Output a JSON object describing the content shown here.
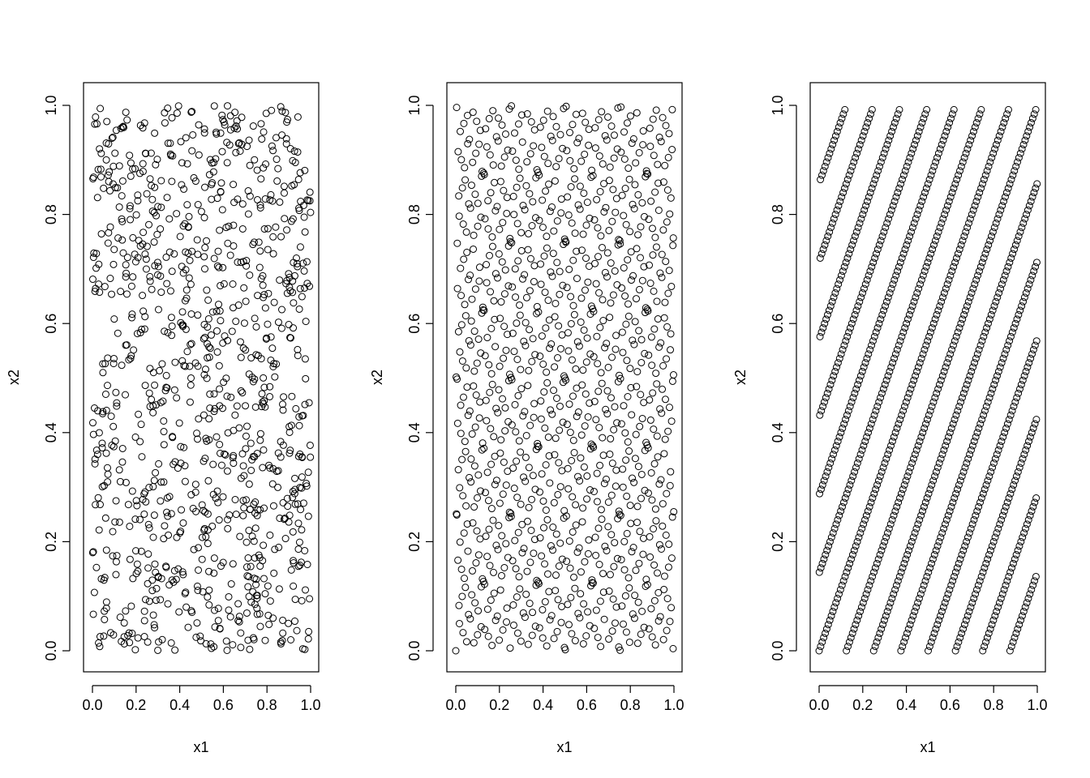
{
  "chart_data": [
    {
      "type": "scatter",
      "xlabel": "x1",
      "ylabel": "x2",
      "xlim": [
        0,
        1
      ],
      "ylim": [
        0,
        1
      ],
      "xticks": [
        "0.0",
        "0.2",
        "0.4",
        "0.6",
        "0.8",
        "1.0"
      ],
      "yticks": [
        "0.0",
        "0.2",
        "0.4",
        "0.6",
        "0.8",
        "1.0"
      ],
      "grid": false,
      "marker": "open-circle",
      "n_points": 1000,
      "pattern": "random uniform sample on unit square",
      "sample_points": [
        [
          0.1,
          0.99
        ],
        [
          0.3,
          0.99
        ],
        [
          0.55,
          1.0
        ],
        [
          0.91,
          1.0
        ],
        [
          0.02,
          0.96
        ],
        [
          0.38,
          0.36
        ],
        [
          0.52,
          0.51
        ],
        [
          0.97,
          0.31
        ],
        [
          0.99,
          0.01
        ],
        [
          0.31,
          0.0
        ],
        [
          0.07,
          0.08
        ],
        [
          0.95,
          0.71
        ],
        [
          0.01,
          0.59
        ],
        [
          0.64,
          0.02
        ],
        [
          0.42,
          0.8
        ]
      ]
    },
    {
      "type": "scatter",
      "xlabel": "x1",
      "ylabel": "x2",
      "xlim": [
        0,
        1
      ],
      "ylim": [
        0,
        1
      ],
      "xticks": [
        "0.0",
        "0.2",
        "0.4",
        "0.6",
        "0.8",
        "1.0"
      ],
      "yticks": [
        "0.0",
        "0.2",
        "0.4",
        "0.6",
        "0.8",
        "1.0"
      ],
      "grid": false,
      "marker": "open-circle",
      "n_points": 1000,
      "pattern": "low-discrepancy (Sobol-like) quasi-random sequence",
      "sample_points": [
        [
          0.0,
          0.0
        ],
        [
          0.5,
          0.5
        ],
        [
          0.25,
          0.75
        ],
        [
          0.75,
          0.25
        ],
        [
          0.375,
          0.375
        ],
        [
          0.875,
          0.875
        ],
        [
          0.125,
          0.625
        ],
        [
          0.625,
          0.125
        ],
        [
          0.87,
          1.0
        ],
        [
          1.0,
          0.88
        ],
        [
          0.01,
          0.99
        ],
        [
          0.99,
          0.01
        ],
        [
          0.38,
          0.0
        ],
        [
          0.25,
          0.25
        ],
        [
          0.62,
          0.62
        ]
      ]
    },
    {
      "type": "scatter",
      "xlabel": "x1",
      "ylabel": "x2",
      "xlim": [
        0,
        1
      ],
      "ylim": [
        0,
        1
      ],
      "xticks": [
        "0.0",
        "0.2",
        "0.4",
        "0.6",
        "0.8",
        "1.0"
      ],
      "yticks": [
        "0.0",
        "0.2",
        "0.4",
        "0.6",
        "0.8",
        "1.0"
      ],
      "grid": false,
      "marker": "open-circle",
      "n_points": 1000,
      "pattern": "rank-1 lattice (slanted diagonal bands)",
      "generator": [
        1,
        144
      ],
      "sample_points": [
        [
          0.0,
          0.39
        ],
        [
          0.09,
          1.0
        ],
        [
          0.55,
          1.0
        ],
        [
          0.99,
          0.99
        ],
        [
          1.0,
          0.03
        ],
        [
          0.12,
          0.0
        ],
        [
          0.5,
          0.0
        ],
        [
          0.84,
          0.0
        ],
        [
          0.4,
          0.41
        ],
        [
          0.7,
          0.58
        ]
      ]
    }
  ]
}
